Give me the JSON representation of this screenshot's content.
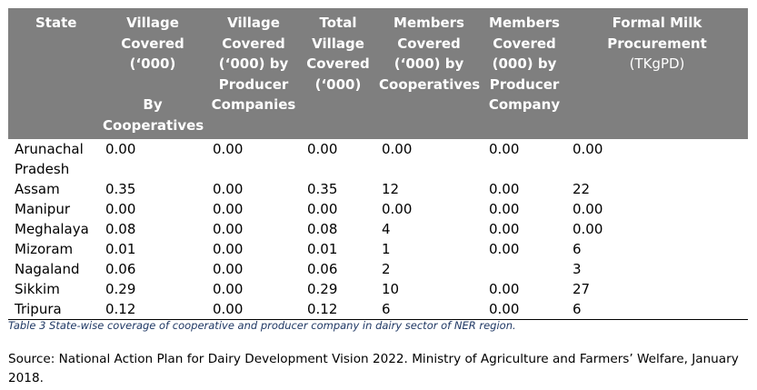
{
  "table": {
    "headers": [
      {
        "text": "State",
        "unit": ""
      },
      {
        "text": "Village\nCovered\n(‘000)\n\nBy\nCooperatives",
        "unit": ""
      },
      {
        "text": "Village\nCovered\n(‘000) by\nProducer\nCompanies",
        "unit": ""
      },
      {
        "text": "Total\nVillage\nCovered\n(‘000)",
        "unit": ""
      },
      {
        "text": "Members\nCovered\n(‘000) by\nCooperatives",
        "unit": ""
      },
      {
        "text": "Members\nCovered\n(000) by\nProducer\nCompany",
        "unit": ""
      },
      {
        "text": "Formal Milk\nProcurement",
        "unit": "(TKgPD)"
      }
    ],
    "rows": [
      [
        "Arunachal\nPradesh",
        "0.00",
        "0.00",
        "0.00",
        "0.00",
        "0.00",
        "0.00"
      ],
      [
        "Assam",
        "0.35",
        "0.00",
        "0.35",
        "12",
        "0.00",
        "22"
      ],
      [
        "Manipur",
        "0.00",
        "0.00",
        "0.00",
        "0.00",
        "0.00",
        "0.00"
      ],
      [
        "Meghalaya",
        "0.08",
        "0.00",
        "0.08",
        "4",
        "0.00",
        "0.00"
      ],
      [
        "Mizoram",
        "0.01",
        "0.00",
        "0.01",
        "1",
        "0.00",
        "6"
      ],
      [
        "Nagaland",
        "0.06",
        "0.00",
        "0.06",
        "2",
        "",
        "3"
      ],
      [
        "Sikkim",
        "0.29",
        "0.00",
        "0.29",
        "10",
        "0.00",
        "27"
      ],
      [
        "Tripura",
        "0.12",
        "0.00",
        "0.12",
        "6",
        "0.00",
        "6"
      ]
    ]
  },
  "caption": "Table 3 State-wise coverage of cooperative and producer company in dairy sector of NER region.",
  "source": "Source: National Action Plan for Dairy Development Vision 2022. Ministry of Agriculture and Farmers’ Welfare, January 2018.",
  "colors": {
    "header_bg": "#7f7f7f",
    "header_text": "#ffffff",
    "caption_text": "#1f3864"
  }
}
